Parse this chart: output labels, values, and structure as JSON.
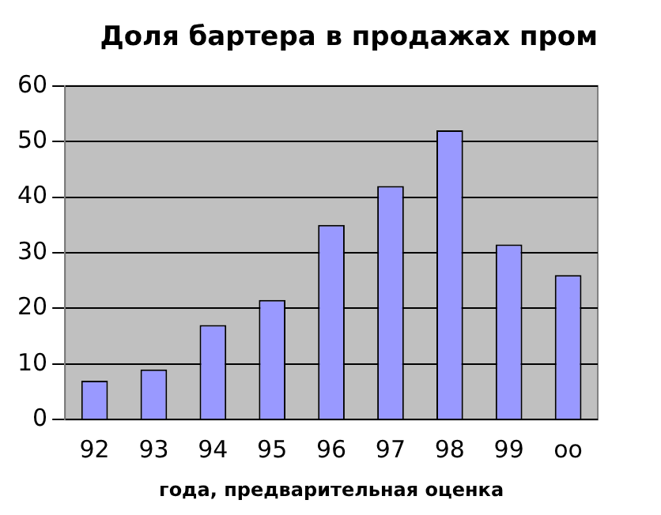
{
  "chart_data": {
    "type": "bar",
    "title": "Доля бартера в продажах пром",
    "xlabel": "года, предварительная оценка",
    "categories": [
      "92",
      "93",
      "94",
      "95",
      "96",
      "97",
      "98",
      "99",
      "oo"
    ],
    "values": [
      7,
      9,
      17,
      21.5,
      35,
      42,
      52,
      31.5,
      26
    ],
    "color": "#9999ff",
    "ylim": [
      0,
      60
    ],
    "yticks": [
      0,
      10,
      20,
      30,
      40,
      50,
      60
    ],
    "grid": "y"
  }
}
